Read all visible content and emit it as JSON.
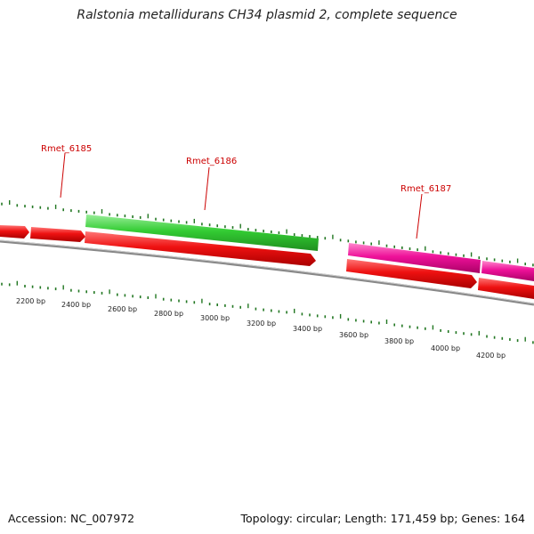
{
  "title": "Ralstonia metallidurans CH34 plasmid 2, complete sequence",
  "footer": {
    "accession": "Accession: NC_007972",
    "summary": "Topology: circular; Length: 171,459 bp; Genes: 164"
  },
  "gene_labels": [
    "Rmet_6185",
    "Rmet_6186",
    "Rmet_6187"
  ],
  "tick_labels": [
    "2200 bp",
    "2400 bp",
    "2600 bp",
    "2800 bp",
    "3000 bp",
    "3200 bp",
    "3400 bp",
    "3600 bp",
    "3800 bp",
    "4000 bp",
    "4200 bp"
  ],
  "colors": {
    "cds_red": "#ee1111",
    "gene_green": "#33cc33",
    "gene_magenta": "#ee1199",
    "backbone": "#888888",
    "tick_green": "#227722",
    "label_red": "#cc0000"
  }
}
